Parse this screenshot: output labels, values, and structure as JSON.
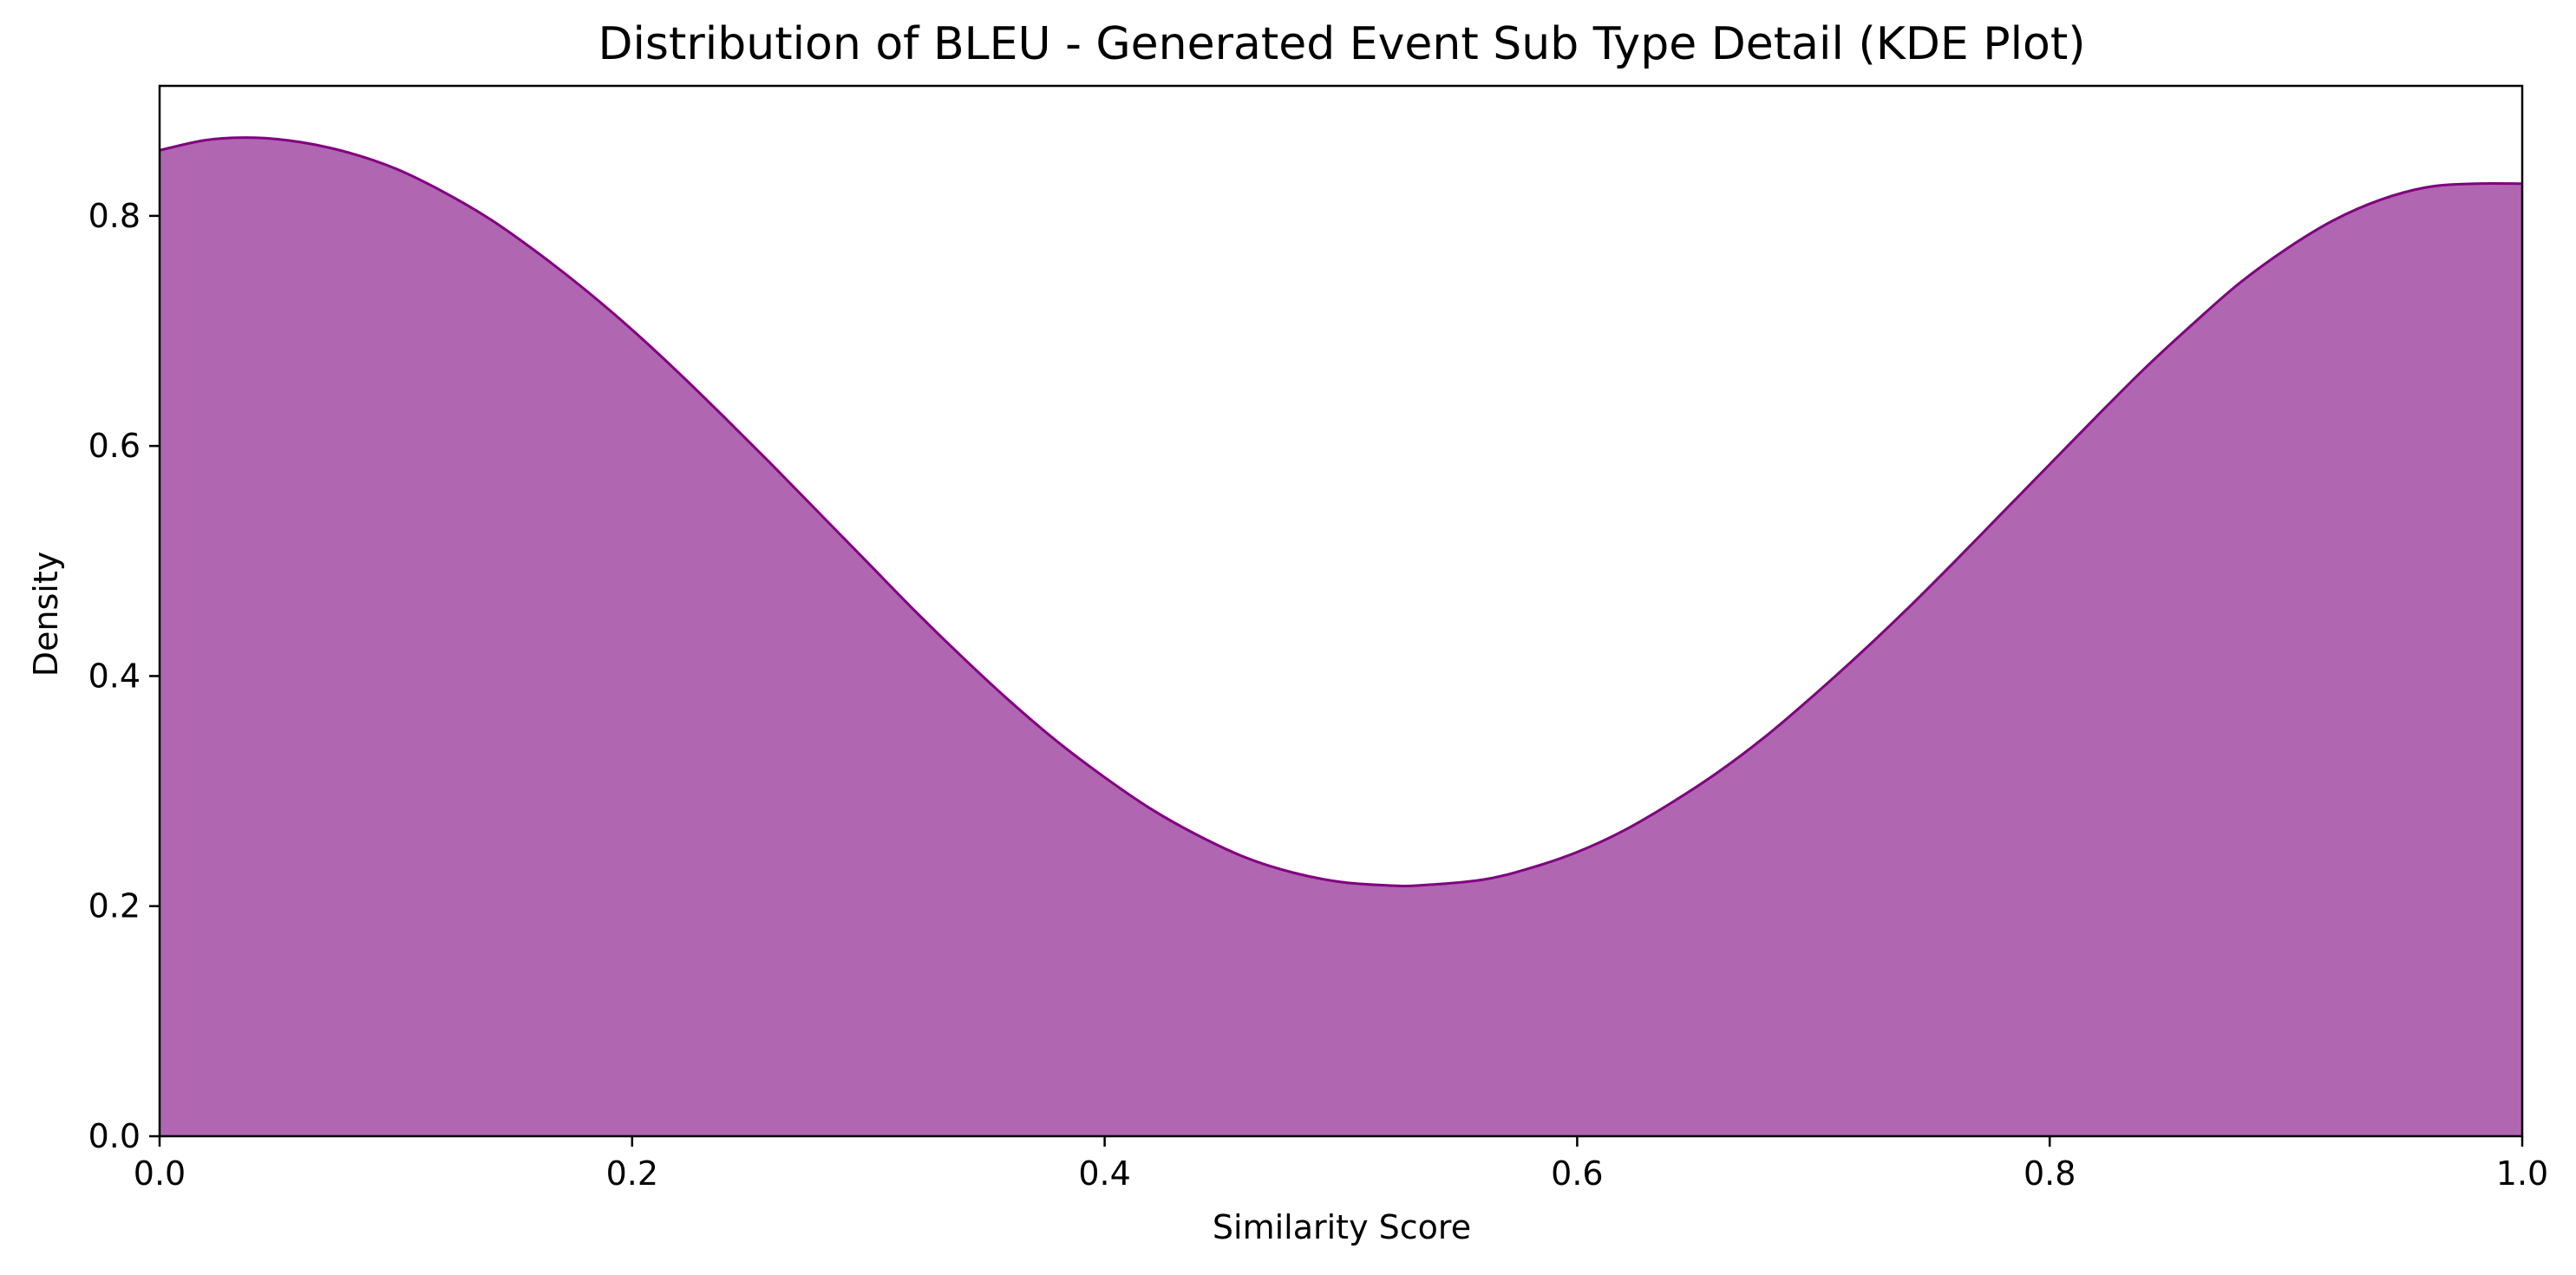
{
  "chart_data": {
    "type": "area",
    "title": "Distribution of BLEU - Generated Event Sub Type Detail (KDE Plot)",
    "xlabel": "Similarity Score",
    "ylabel": "Density",
    "xlim": [
      0.0,
      1.0
    ],
    "ylim": [
      0.0,
      0.913
    ],
    "xticks": [
      0.0,
      0.2,
      0.4,
      0.6,
      0.8,
      1.0
    ],
    "xtick_labels": [
      "0.0",
      "0.2",
      "0.4",
      "0.6",
      "0.8",
      "1.0"
    ],
    "yticks": [
      0.0,
      0.2,
      0.4,
      0.6,
      0.8
    ],
    "ytick_labels": [
      "0.0",
      "0.2",
      "0.4",
      "0.6",
      "0.8"
    ],
    "grid": false,
    "legend": "none",
    "series": [
      {
        "fill_color": "#b066b0",
        "line_color": "#800080",
        "x": [
          0.0,
          0.02,
          0.04,
          0.06,
          0.08,
          0.1,
          0.12,
          0.14,
          0.16,
          0.18,
          0.2,
          0.22,
          0.24,
          0.26,
          0.28,
          0.3,
          0.32,
          0.34,
          0.36,
          0.38,
          0.4,
          0.42,
          0.44,
          0.46,
          0.48,
          0.5,
          0.52,
          0.533,
          0.56,
          0.58,
          0.6,
          0.62,
          0.64,
          0.66,
          0.68,
          0.7,
          0.72,
          0.74,
          0.76,
          0.78,
          0.8,
          0.82,
          0.84,
          0.86,
          0.88,
          0.9,
          0.92,
          0.94,
          0.96,
          0.98,
          1.0
        ],
        "y": [
          0.857,
          0.866,
          0.868,
          0.864,
          0.855,
          0.841,
          0.821,
          0.797,
          0.768,
          0.736,
          0.701,
          0.663,
          0.623,
          0.582,
          0.54,
          0.498,
          0.456,
          0.416,
          0.378,
          0.343,
          0.312,
          0.284,
          0.261,
          0.242,
          0.229,
          0.221,
          0.218,
          0.218,
          0.223,
          0.233,
          0.247,
          0.266,
          0.29,
          0.317,
          0.348,
          0.383,
          0.42,
          0.459,
          0.5,
          0.542,
          0.584,
          0.626,
          0.667,
          0.705,
          0.741,
          0.771,
          0.796,
          0.814,
          0.825,
          0.828,
          0.828
        ]
      }
    ]
  }
}
